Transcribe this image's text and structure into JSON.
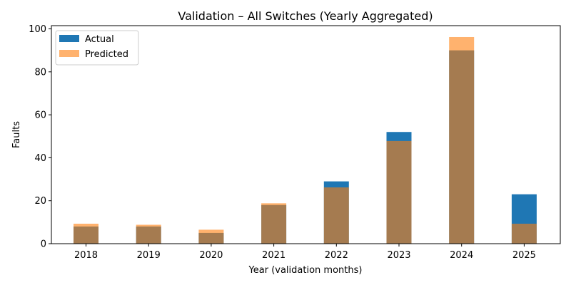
{
  "chart_data": {
    "type": "bar",
    "title": "Validation – All Switches (Yearly Aggregated)",
    "xlabel": "Year (validation months)",
    "ylabel": "Faults",
    "categories": [
      "2018",
      "2019",
      "2020",
      "2021",
      "2022",
      "2023",
      "2024",
      "2025"
    ],
    "ylim": [
      0,
      101.5
    ],
    "yticks": [
      0,
      20,
      40,
      60,
      80,
      100
    ],
    "grid": false,
    "legend_position": "upper-left",
    "overlay": true,
    "series": [
      {
        "name": "Actual",
        "color": "#1f77b4",
        "opacity": 1.0,
        "values": [
          8,
          8,
          5,
          18,
          29,
          52,
          90,
          23
        ]
      },
      {
        "name": "Predicted",
        "color": "#ff7f0e",
        "opacity": 0.6,
        "values": [
          9.3,
          8.8,
          6.5,
          18.8,
          26.2,
          47.8,
          96.2,
          9.3
        ]
      }
    ]
  }
}
